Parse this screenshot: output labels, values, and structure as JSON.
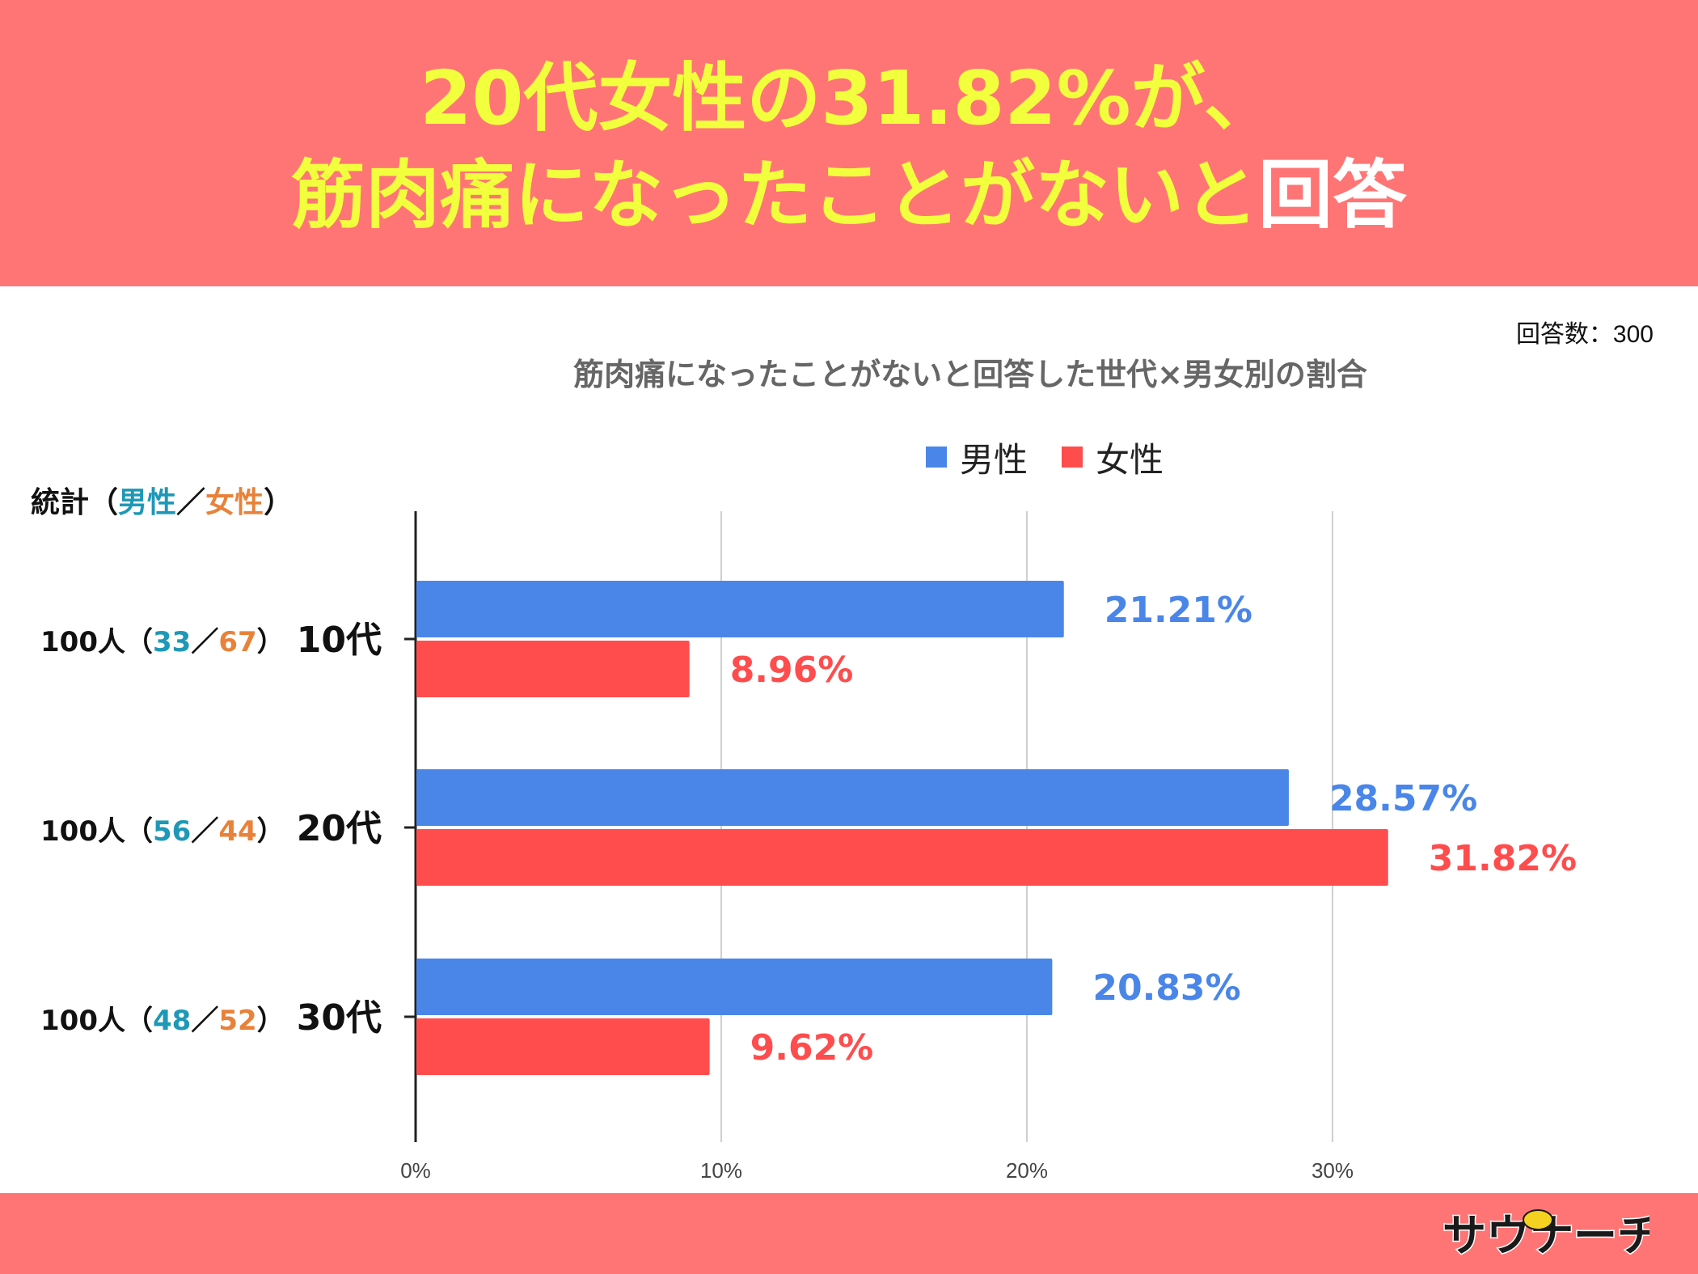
{
  "header": {
    "line1": "20代女性の31.82%が、",
    "line2_main": "筋肉痛になったことがないと",
    "line2_end": "回答"
  },
  "respondents": "回答数：300",
  "stats": {
    "header_prefix": "統計（",
    "header_male": "男性",
    "header_sep": "／",
    "header_female": "女性",
    "header_suffix": "）",
    "rows": [
      {
        "total": "100人（",
        "male": "33",
        "sep": "／",
        "female": "67",
        "end": "）"
      },
      {
        "total": "100人（",
        "male": "56",
        "sep": "／",
        "female": "44",
        "end": "）"
      },
      {
        "total": "100人（",
        "male": "48",
        "sep": "／",
        "female": "52",
        "end": "）"
      }
    ]
  },
  "logo_text": "サウナーチ",
  "chart_data": {
    "type": "bar",
    "orientation": "horizontal",
    "title": "筋肉痛になったことがないと回答した世代×男女別の割合",
    "categories": [
      "10代",
      "20代",
      "30代"
    ],
    "series": [
      {
        "name": "男性",
        "color": "#4a86e8",
        "values": [
          21.21,
          28.57,
          20.83
        ],
        "labels": [
          "21.21%",
          "28.57%",
          "20.83%"
        ]
      },
      {
        "name": "女性",
        "color": "#ff4d4d",
        "values": [
          8.96,
          31.82,
          9.62
        ],
        "labels": [
          "8.96%",
          "31.82%",
          "9.62%"
        ]
      }
    ],
    "xlim": [
      0,
      35
    ],
    "xticks": [
      0,
      10,
      20,
      30
    ],
    "xtick_labels": [
      "0%",
      "10%",
      "20%",
      "30%"
    ],
    "grid": true,
    "legend": "top"
  }
}
